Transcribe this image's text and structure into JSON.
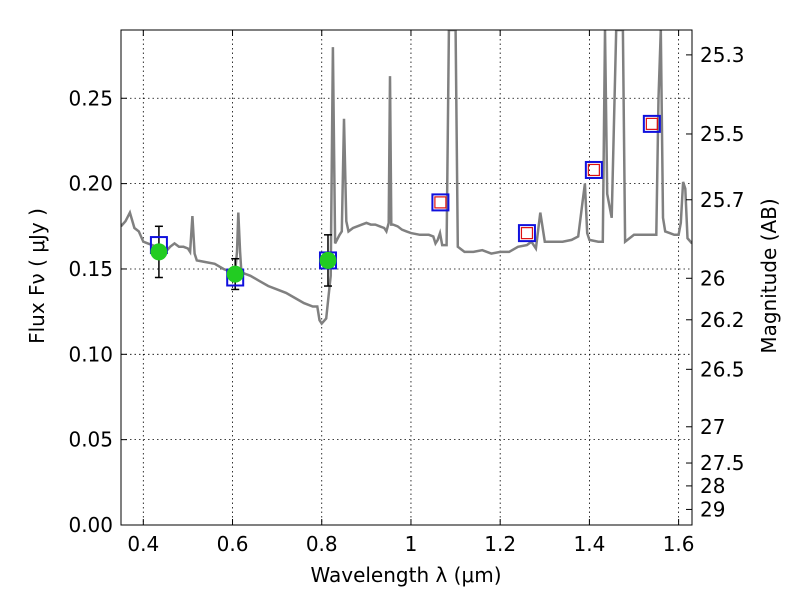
{
  "chart_data": {
    "type": "scatter",
    "xlabel": "Wavelength  λ (μm)",
    "ylabel": "Flux  Fν  ( μJy )",
    "y2label": "Magnitude (AB)",
    "xlim": [
      0.35,
      1.63
    ],
    "ylim": [
      0.0,
      0.29
    ],
    "grid": true,
    "x_ticks": [
      0.4,
      0.6,
      0.8,
      1.0,
      1.2,
      1.4,
      1.6
    ],
    "x_tick_labels": [
      "0.4",
      "0.6",
      "0.8",
      "1",
      "1.2",
      "1.4",
      "1.6"
    ],
    "y_ticks": [
      0.0,
      0.05,
      0.1,
      0.15,
      0.2,
      0.25
    ],
    "y_tick_labels": [
      "0.00",
      "0.05",
      "0.10",
      "0.15",
      "0.20",
      "0.25"
    ],
    "y2_ticks": [
      {
        "label": "25.3",
        "value": 25.3
      },
      {
        "label": "25.5",
        "value": 25.5
      },
      {
        "label": "25.7",
        "value": 25.7
      },
      {
        "label": "26",
        "value": 26.0
      },
      {
        "label": "26.2",
        "value": 26.2
      },
      {
        "label": "26.5",
        "value": 26.5
      },
      {
        "label": "27",
        "value": 27.0
      },
      {
        "label": "27.5",
        "value": 27.5
      },
      {
        "label": "28",
        "value": 28.0
      },
      {
        "label": "29",
        "value": 29.0
      }
    ],
    "series": [
      {
        "type": "line",
        "color": "#808080",
        "points": [
          [
            0.35,
            0.175
          ],
          [
            0.36,
            0.178
          ],
          [
            0.37,
            0.183
          ],
          [
            0.38,
            0.174
          ],
          [
            0.39,
            0.172
          ],
          [
            0.4,
            0.166
          ],
          [
            0.41,
            0.165
          ],
          [
            0.42,
            0.164
          ],
          [
            0.43,
            0.163
          ],
          [
            0.44,
            0.162
          ],
          [
            0.45,
            0.16
          ],
          [
            0.46,
            0.163
          ],
          [
            0.47,
            0.165
          ],
          [
            0.48,
            0.163
          ],
          [
            0.49,
            0.163
          ],
          [
            0.5,
            0.162
          ],
          [
            0.505,
            0.16
          ],
          [
            0.51,
            0.181
          ],
          [
            0.515,
            0.159
          ],
          [
            0.52,
            0.155
          ],
          [
            0.54,
            0.154
          ],
          [
            0.56,
            0.153
          ],
          [
            0.58,
            0.15
          ],
          [
            0.6,
            0.148
          ],
          [
            0.605,
            0.146
          ],
          [
            0.61,
            0.16
          ],
          [
            0.613,
            0.183
          ],
          [
            0.617,
            0.16
          ],
          [
            0.62,
            0.148
          ],
          [
            0.64,
            0.146
          ],
          [
            0.66,
            0.143
          ],
          [
            0.68,
            0.14
          ],
          [
            0.7,
            0.138
          ],
          [
            0.72,
            0.136
          ],
          [
            0.74,
            0.133
          ],
          [
            0.76,
            0.13
          ],
          [
            0.78,
            0.128
          ],
          [
            0.79,
            0.128
          ],
          [
            0.795,
            0.12
          ],
          [
            0.8,
            0.118
          ],
          [
            0.81,
            0.121
          ],
          [
            0.82,
            0.146
          ],
          [
            0.825,
            0.28
          ],
          [
            0.83,
            0.165
          ],
          [
            0.84,
            0.17
          ],
          [
            0.845,
            0.172
          ],
          [
            0.85,
            0.238
          ],
          [
            0.855,
            0.178
          ],
          [
            0.86,
            0.172
          ],
          [
            0.87,
            0.174
          ],
          [
            0.88,
            0.175
          ],
          [
            0.89,
            0.176
          ],
          [
            0.9,
            0.177
          ],
          [
            0.91,
            0.176
          ],
          [
            0.92,
            0.176
          ],
          [
            0.93,
            0.175
          ],
          [
            0.94,
            0.174
          ],
          [
            0.945,
            0.172
          ],
          [
            0.95,
            0.177
          ],
          [
            0.953,
            0.263
          ],
          [
            0.956,
            0.176
          ],
          [
            0.96,
            0.176
          ],
          [
            0.97,
            0.175
          ],
          [
            0.98,
            0.173
          ],
          [
            0.99,
            0.172
          ],
          [
            1.0,
            0.171
          ],
          [
            1.02,
            0.17
          ],
          [
            1.04,
            0.17
          ],
          [
            1.05,
            0.169
          ],
          [
            1.055,
            0.165
          ],
          [
            1.06,
            0.167
          ],
          [
            1.065,
            0.171
          ],
          [
            1.07,
            0.164
          ],
          [
            1.08,
            0.164
          ],
          [
            1.085,
            0.29
          ],
          [
            1.1,
            0.29
          ],
          [
            1.105,
            0.163
          ],
          [
            1.12,
            0.16
          ],
          [
            1.14,
            0.16
          ],
          [
            1.16,
            0.161
          ],
          [
            1.18,
            0.159
          ],
          [
            1.2,
            0.16
          ],
          [
            1.22,
            0.16
          ],
          [
            1.24,
            0.163
          ],
          [
            1.26,
            0.164
          ],
          [
            1.27,
            0.166
          ],
          [
            1.28,
            0.162
          ],
          [
            1.29,
            0.183
          ],
          [
            1.3,
            0.166
          ],
          [
            1.32,
            0.166
          ],
          [
            1.34,
            0.166
          ],
          [
            1.36,
            0.167
          ],
          [
            1.375,
            0.169
          ],
          [
            1.385,
            0.19
          ],
          [
            1.39,
            0.2
          ],
          [
            1.395,
            0.171
          ],
          [
            1.4,
            0.167
          ],
          [
            1.42,
            0.166
          ],
          [
            1.43,
            0.166
          ],
          [
            1.435,
            0.29
          ],
          [
            1.44,
            0.194
          ],
          [
            1.45,
            0.18
          ],
          [
            1.46,
            0.29
          ],
          [
            1.475,
            0.29
          ],
          [
            1.48,
            0.166
          ],
          [
            1.5,
            0.17
          ],
          [
            1.52,
            0.17
          ],
          [
            1.54,
            0.17
          ],
          [
            1.55,
            0.17
          ],
          [
            1.555,
            0.25
          ],
          [
            1.56,
            0.29
          ],
          [
            1.565,
            0.18
          ],
          [
            1.57,
            0.172
          ],
          [
            1.58,
            0.171
          ],
          [
            1.59,
            0.17
          ],
          [
            1.6,
            0.17
          ],
          [
            1.605,
            0.177
          ],
          [
            1.61,
            0.201
          ],
          [
            1.615,
            0.197
          ],
          [
            1.62,
            0.168
          ],
          [
            1.63,
            0.165
          ]
        ]
      },
      {
        "type": "observed",
        "marker": "circle",
        "color": "#22cc22",
        "points": [
          {
            "x": 0.435,
            "y": 0.16,
            "err": 0.015
          },
          {
            "x": 0.606,
            "y": 0.147,
            "err": 0.009
          },
          {
            "x": 0.814,
            "y": 0.155,
            "err": 0.015
          }
        ]
      },
      {
        "type": "model",
        "marker": "square",
        "color": "#1010dd",
        "points": [
          {
            "x": 0.435,
            "y": 0.164
          },
          {
            "x": 0.606,
            "y": 0.145
          },
          {
            "x": 0.814,
            "y": 0.155
          },
          {
            "x": 1.066,
            "y": 0.189
          },
          {
            "x": 1.26,
            "y": 0.171
          },
          {
            "x": 1.41,
            "y": 0.208
          },
          {
            "x": 1.54,
            "y": 0.235
          }
        ]
      },
      {
        "type": "model-inner",
        "marker": "square",
        "color": "#dd1010",
        "points": [
          {
            "x": 1.066,
            "y": 0.189
          },
          {
            "x": 1.26,
            "y": 0.171
          },
          {
            "x": 1.41,
            "y": 0.208
          },
          {
            "x": 1.54,
            "y": 0.235
          }
        ]
      }
    ]
  }
}
